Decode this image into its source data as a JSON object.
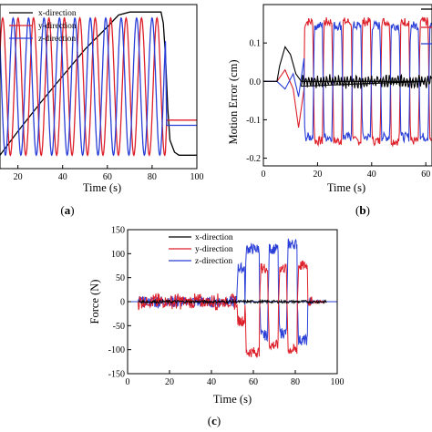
{
  "colors": {
    "x": "#000000",
    "y": "#dd1f2a",
    "z": "#2a3fd8"
  },
  "panels": [
    {
      "label": "(a)"
    },
    {
      "label": "(b)"
    },
    {
      "label": "(c)"
    }
  ],
  "chart_data": [
    {
      "id": "a",
      "type": "line",
      "xlabel": "Time (s)",
      "ylabel": "",
      "xlim": [
        12,
        100
      ],
      "xticks": [
        20,
        40,
        60,
        80,
        100
      ],
      "ylim": [
        -1.1,
        1.1
      ],
      "legend": {
        "position": "top-left",
        "entries": [
          "x-direction",
          "y-direction",
          "z-direction"
        ]
      },
      "series": [
        {
          "name": "x-direction",
          "segments": [
            [
              12,
              -0.92
            ],
            [
              14,
              -0.84
            ],
            [
              20,
              -0.6
            ],
            [
              30,
              -0.22
            ],
            [
              40,
              0.14
            ],
            [
              50,
              0.5
            ],
            [
              60,
              0.8
            ],
            [
              65,
              0.96
            ],
            [
              70,
              1.0
            ],
            [
              84,
              1.0
            ],
            [
              85,
              0.85
            ],
            [
              86,
              0.4
            ],
            [
              87,
              -0.3
            ],
            [
              88,
              -0.72
            ],
            [
              90,
              -0.88
            ],
            [
              92,
              -0.92
            ],
            [
              100,
              -0.92
            ]
          ]
        },
        {
          "name": "y-direction",
          "wave": {
            "start": 12,
            "end": 86,
            "period": 6.9,
            "amplitude": 0.92,
            "phase": 0.5,
            "tail_value": -0.45
          }
        },
        {
          "name": "z-direction",
          "wave": {
            "start": 12,
            "end": 86,
            "period": 6.9,
            "amplitude": 0.92,
            "phase": 2.5,
            "tail_value": -0.52
          }
        }
      ]
    },
    {
      "id": "b",
      "type": "line",
      "xlabel": "Time (s)",
      "ylabel": "Motion Error  (cm)",
      "xlim": [
        0,
        60
      ],
      "xticks": [
        0,
        20,
        40,
        60
      ],
      "ylim": [
        -0.22,
        0.2
      ],
      "yticks": [
        -0.2,
        -0.1,
        0.0,
        0.1
      ],
      "ytick_labels": [
        "-0.2",
        "-0.1",
        "0.0",
        "0.1"
      ],
      "series": [
        {
          "name": "",
          "points": [
            [
              0,
              0.0
            ],
            [
              5,
              0.0
            ],
            [
              6,
              0.04
            ],
            [
              8,
              0.09
            ],
            [
              10,
              0.07
            ],
            [
              12,
              0.02
            ],
            [
              14,
              0.0
            ],
            [
              60,
              0.0
            ]
          ],
          "square_wave": {
            "start": 14,
            "period": 7.1,
            "amplitude": 0.0,
            "noise": 0.012
          }
        },
        {
          "name": "",
          "points": [
            [
              0,
              0.0
            ],
            [
              5,
              0.0
            ],
            [
              8,
              0.03
            ],
            [
              11,
              -0.02
            ],
            [
              13,
              -0.12
            ],
            [
              15,
              -0.02
            ]
          ],
          "square_wave": {
            "start": 15,
            "period": 7.1,
            "amplitude": 0.155,
            "noise": 0.012
          }
        },
        {
          "name": "",
          "points": [
            [
              0,
              0.0
            ],
            [
              5,
              0.0
            ],
            [
              8,
              -0.02
            ],
            [
              11,
              0.02
            ],
            [
              13,
              -0.04
            ],
            [
              15,
              0.06
            ]
          ],
          "square_wave": {
            "start": 15,
            "period": 7.1,
            "amplitude": 0.145,
            "noise": 0.012,
            "invert": true
          }
        }
      ]
    },
    {
      "id": "c",
      "type": "line",
      "xlabel": "Time (s)",
      "ylabel": "Force (N)",
      "xlim": [
        0,
        100
      ],
      "xticks": [
        0,
        20,
        40,
        60,
        80,
        100
      ],
      "ylim": [
        -150,
        150
      ],
      "yticks": [
        -150,
        -100,
        -50,
        0,
        50,
        100,
        150
      ],
      "legend": {
        "position": "top-left",
        "entries": [
          "x-direction",
          "y-direction",
          "z-direction"
        ]
      },
      "series": [
        {
          "name": "x-direction",
          "flat": {
            "value": 0,
            "noise": 3,
            "start": 5,
            "end": 95
          }
        },
        {
          "name": "y-direction",
          "blocks": [
            [
              52,
              56,
              -40
            ],
            [
              56,
              63,
              -105
            ],
            [
              63,
              67,
              70
            ],
            [
              67,
              72,
              -90
            ],
            [
              72,
              76,
              70
            ],
            [
              76,
              81,
              -100
            ],
            [
              81,
              86,
              75
            ],
            [
              86,
              88,
              0
            ]
          ],
          "noise_region": [
            5,
            52,
            18
          ]
        },
        {
          "name": "z-direction",
          "blocks": [
            [
              52,
              56,
              70
            ],
            [
              56,
              63,
              110
            ],
            [
              63,
              67,
              -70
            ],
            [
              67,
              72,
              110
            ],
            [
              72,
              76,
              -65
            ],
            [
              76,
              81,
              120
            ],
            [
              81,
              86,
              -80
            ],
            [
              86,
              88,
              0
            ]
          ],
          "noise_region": [
            5,
            52,
            14
          ]
        }
      ]
    }
  ]
}
